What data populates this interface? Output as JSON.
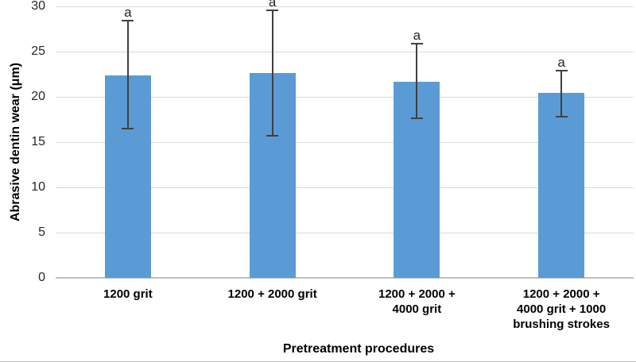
{
  "chart_data": {
    "type": "bar",
    "title": "",
    "xlabel": "Pretreatment procedures",
    "ylabel": "Abrasive dentin wear (μm)",
    "categories": [
      "1200 grit",
      "1200 + 2000 grit",
      "1200 + 2000 +\n4000 grit",
      "1200 + 2000 +\n4000 grit + 1000\nbrushing strokes"
    ],
    "values": [
      22.4,
      22.6,
      21.7,
      20.4
    ],
    "error_bars": {
      "low": [
        16.5,
        15.7,
        17.6,
        17.8
      ],
      "high": [
        28.4,
        29.6,
        25.9,
        22.9
      ]
    },
    "significance_labels": [
      "a",
      "a",
      "a",
      "a"
    ],
    "ylim": [
      0,
      30
    ],
    "ytick_step": 5,
    "yticks": [
      0,
      5,
      10,
      15,
      20,
      25,
      30
    ],
    "grid": "horizontal",
    "legend": "none",
    "colors": {
      "bar": "#5b9bd5",
      "error_bar": "#404040",
      "gridline": "#d9d9d9",
      "axis_line": "#bfbfbf",
      "tick_text": "#262626",
      "label_text": "#000000"
    }
  }
}
